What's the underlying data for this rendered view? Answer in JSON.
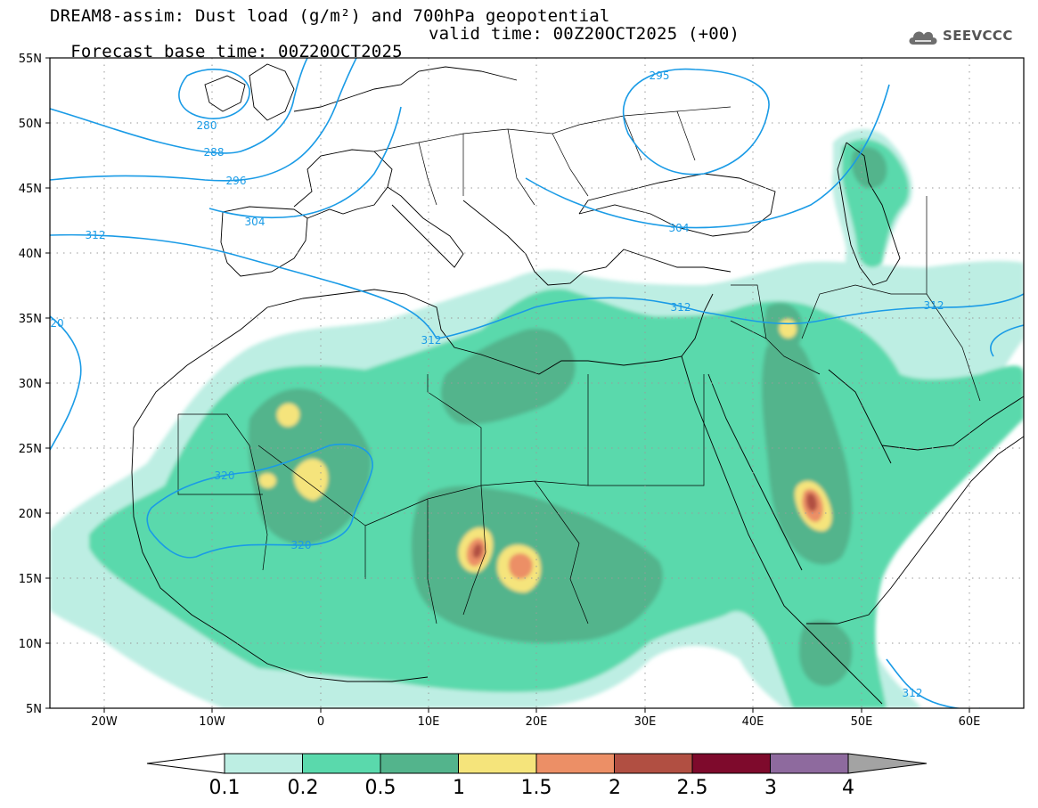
{
  "title": {
    "line1": "DREAM8-assim: Dust load (g/m²) and 700hPa geopotential",
    "base_time": "Forecast base time: 00Z20OCT2025",
    "valid_time": "valid time: 00Z20OCT2025 (+00)"
  },
  "logo": {
    "text": "SEEVCCC",
    "icon": "cloud-icon"
  },
  "map": {
    "lat_labels": [
      "55N",
      "50N",
      "45N",
      "40N",
      "35N",
      "30N",
      "25N",
      "20N",
      "15N",
      "10N",
      "5N"
    ],
    "lon_labels": [
      "20W",
      "10W",
      "0",
      "10E",
      "20E",
      "30E",
      "40E",
      "50E",
      "60E"
    ],
    "contour_labels": [
      "280",
      "288",
      "296",
      "304",
      "312",
      "320",
      "320",
      "295",
      "304",
      "312",
      "312",
      "312",
      "312",
      "20"
    ],
    "colors": {
      "contour": "#1a9be6",
      "coast": "#000000",
      "grid": "#9a9a9a"
    },
    "dust_levels": [
      {
        "range": "0.1-0.2",
        "color": "#bdeee3"
      },
      {
        "range": "0.2-0.5",
        "color": "#5ad9ac"
      },
      {
        "range": "0.5-1",
        "color": "#53b48c"
      },
      {
        "range": "1-1.5",
        "color": "#f5e47b"
      },
      {
        "range": "1.5-2",
        "color": "#ec8f66"
      },
      {
        "range": "2-2.5",
        "color": "#b14f42"
      }
    ]
  },
  "colorbar": {
    "labels": [
      "0.1",
      "0.2",
      "0.5",
      "1",
      "1.5",
      "2",
      "2.5",
      "3",
      "4"
    ],
    "colors": [
      "#bdeee3",
      "#5ad9ac",
      "#53b48c",
      "#f5e47b",
      "#ec8f66",
      "#b14f42",
      "#7e0a2c",
      "#8e6a9e"
    ],
    "under_color": "#ffffff",
    "over_color": "#a3a3a3"
  }
}
